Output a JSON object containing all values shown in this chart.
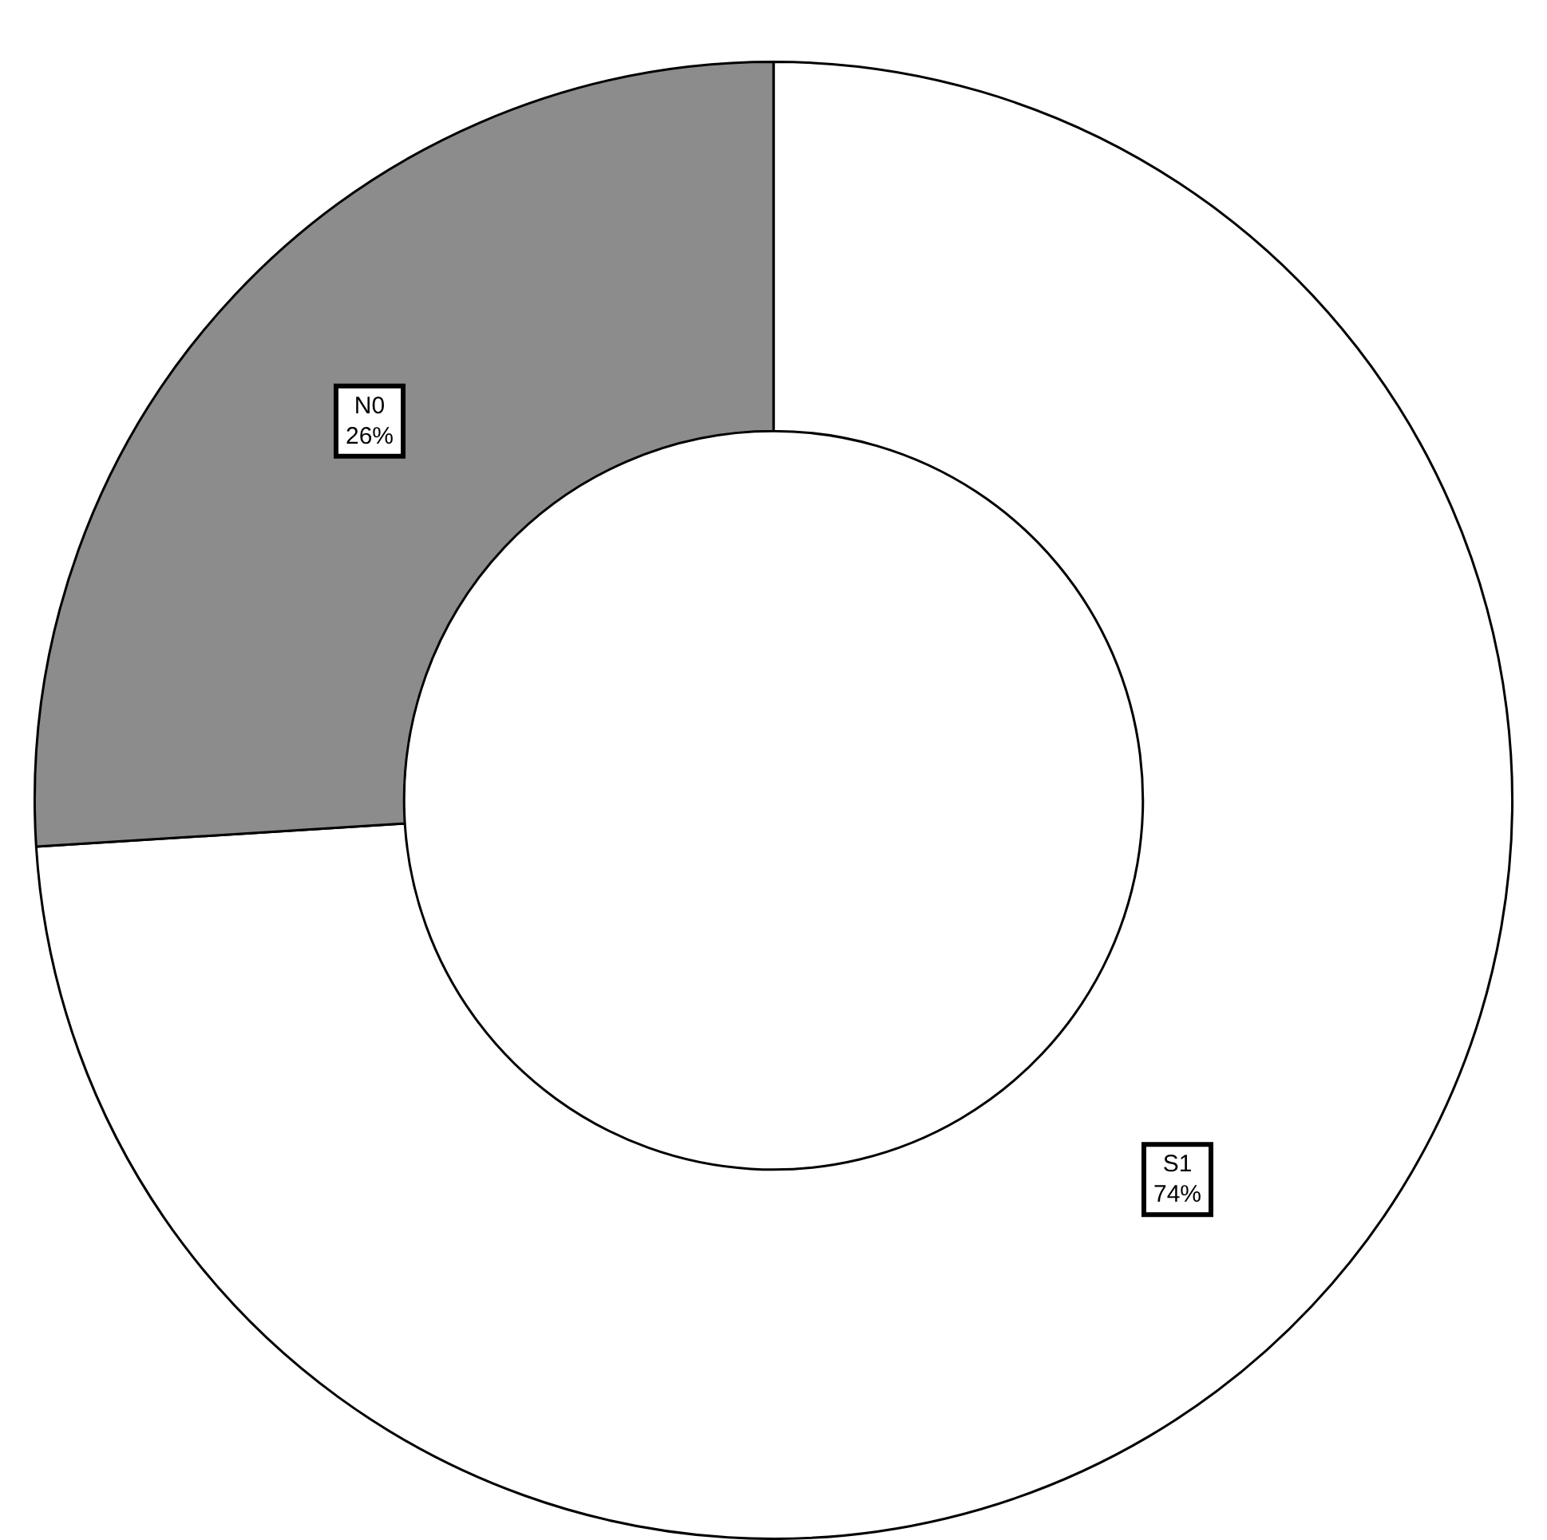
{
  "chart_data": {
    "type": "donut",
    "categories": [
      "S1",
      "N0"
    ],
    "values": [
      74,
      26
    ],
    "colors": [
      "#ffffff",
      "#8c8c8c"
    ],
    "value_labels": [
      "74%",
      "26%"
    ],
    "legend": false
  }
}
